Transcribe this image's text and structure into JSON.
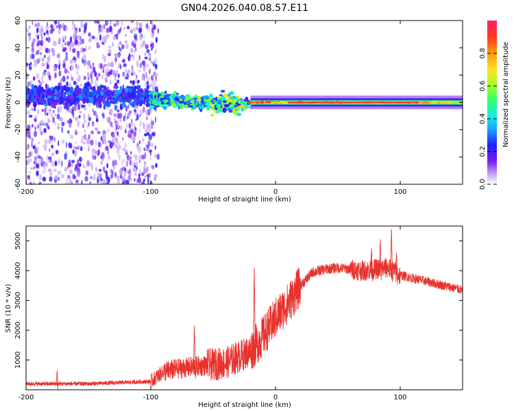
{
  "page_title": "GN04.2026.040.08.57.E11",
  "chart_data": [
    {
      "type": "heatmap",
      "name": "spectrogram",
      "xlabel": "Height of straight line (km)",
      "ylabel": "Frequency (Hz)",
      "xlim": [
        -200,
        150
      ],
      "ylim": [
        -60,
        60
      ],
      "xticks": [
        -200,
        -100,
        0,
        100
      ],
      "yticks": [
        -60,
        -40,
        -20,
        0,
        20,
        40,
        60
      ],
      "colorbar": {
        "label": "Normalized spectral amplitude",
        "range": [
          0,
          1
        ],
        "ticks": [
          "0.0",
          "0.2",
          "0.4",
          "0.6",
          "0.8"
        ]
      },
      "regions": [
        {
          "x_from": -200,
          "x_to": -100,
          "description": "broadband noise",
          "band_center_hz": 5,
          "band_halfwidth_hz": 10,
          "peak_amplitude": 0.25
        },
        {
          "x_from": -100,
          "x_to": -20,
          "description": "narrowing band",
          "band_center_hz": 2,
          "band_halfwidth_hz": 8,
          "peak_amplitude": 0.55
        },
        {
          "x_from": -20,
          "x_to": 150,
          "description": "narrow strong line",
          "band_center_hz": 0,
          "band_halfwidth_hz": 2,
          "peak_amplitude": 0.95
        }
      ]
    },
    {
      "type": "line",
      "name": "snr",
      "xlabel": "Height of straight line (km)",
      "ylabel": "SNR (10 * v/v)",
      "xlim": [
        -200,
        150
      ],
      "ylim": [
        0,
        5500
      ],
      "xticks": [
        -200,
        -100,
        0,
        100
      ],
      "yticks": [
        1000,
        2000,
        3000,
        4000,
        5000
      ],
      "color": "#e8322e",
      "trend": {
        "x": [
          -200,
          -150,
          -100,
          -90,
          -80,
          -70,
          -60,
          -50,
          -40,
          -30,
          -20,
          -10,
          0,
          10,
          20,
          30,
          40,
          50,
          60,
          70,
          80,
          90,
          100,
          110,
          120,
          130,
          140,
          150
        ],
        "y": [
          200,
          200,
          280,
          600,
          700,
          750,
          800,
          850,
          900,
          1100,
          1300,
          1800,
          2400,
          2900,
          3500,
          3950,
          4050,
          4100,
          4050,
          4000,
          4050,
          4100,
          3850,
          3750,
          3650,
          3550,
          3450,
          3350
        ]
      },
      "spikes": [
        {
          "x": -175,
          "y": 650
        },
        {
          "x": -65,
          "y": 2150
        },
        {
          "x": -17,
          "y": 4100
        },
        {
          "x": 77,
          "y": 4750
        },
        {
          "x": 84,
          "y": 5050
        },
        {
          "x": 93,
          "y": 5400
        },
        {
          "x": 97,
          "y": 4600
        }
      ]
    }
  ]
}
